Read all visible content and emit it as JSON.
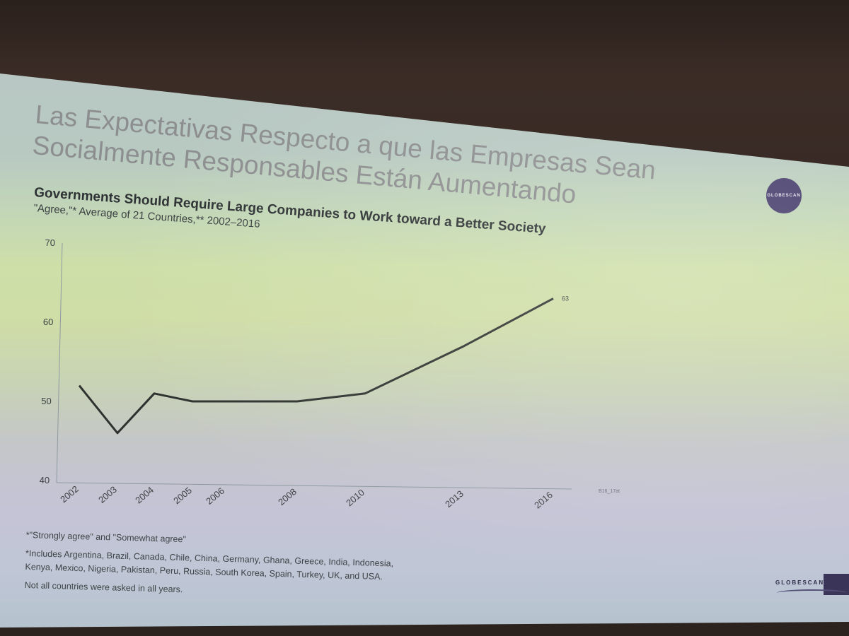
{
  "slide": {
    "title_line1": "Las Expectativas Respecto a que las Empresas Sean",
    "title_line2": "Socialmente Responsables Están Aumentando",
    "logo_text": "GLOBESCAN",
    "footnote_agree": "*\"Strongly agree\" and \"Somewhat agree\"",
    "footnote_countries_1": "*Includes Argentina, Brazil, Canada, Chile, China, Germany, Ghana, Greece, India, Indonesia,",
    "footnote_countries_2": "Kenya, Mexico, Nigeria, Pakistan, Peru, Russia, South Korea, Spain, Turkey, UK, and USA.",
    "footnote_years": "Not all countries were asked in all years.",
    "colors": {
      "logo": "#473e6c",
      "line": "#2f3330",
      "title_gray": "#8d8e8f"
    }
  },
  "chart_data": {
    "type": "line",
    "title": "Governments Should Require Large Companies to Work toward a Better Society",
    "subtitle": "\"Agree,\"* Average of 21 Countries,** 2002–2016",
    "source_code": "B16_17at",
    "xlabel": "",
    "ylabel": "",
    "ylim": [
      40,
      70
    ],
    "yticks": [
      40,
      50,
      60,
      70
    ],
    "grid": false,
    "legend": "none",
    "categories": [
      "2002",
      "2003",
      "2004",
      "2005",
      "2006",
      "2008",
      "2010",
      "2013",
      "2016"
    ],
    "series": [
      {
        "values": [
          52,
          46,
          51,
          50,
          50,
          50,
          51,
          57,
          63
        ],
        "end_label": "63"
      }
    ]
  }
}
